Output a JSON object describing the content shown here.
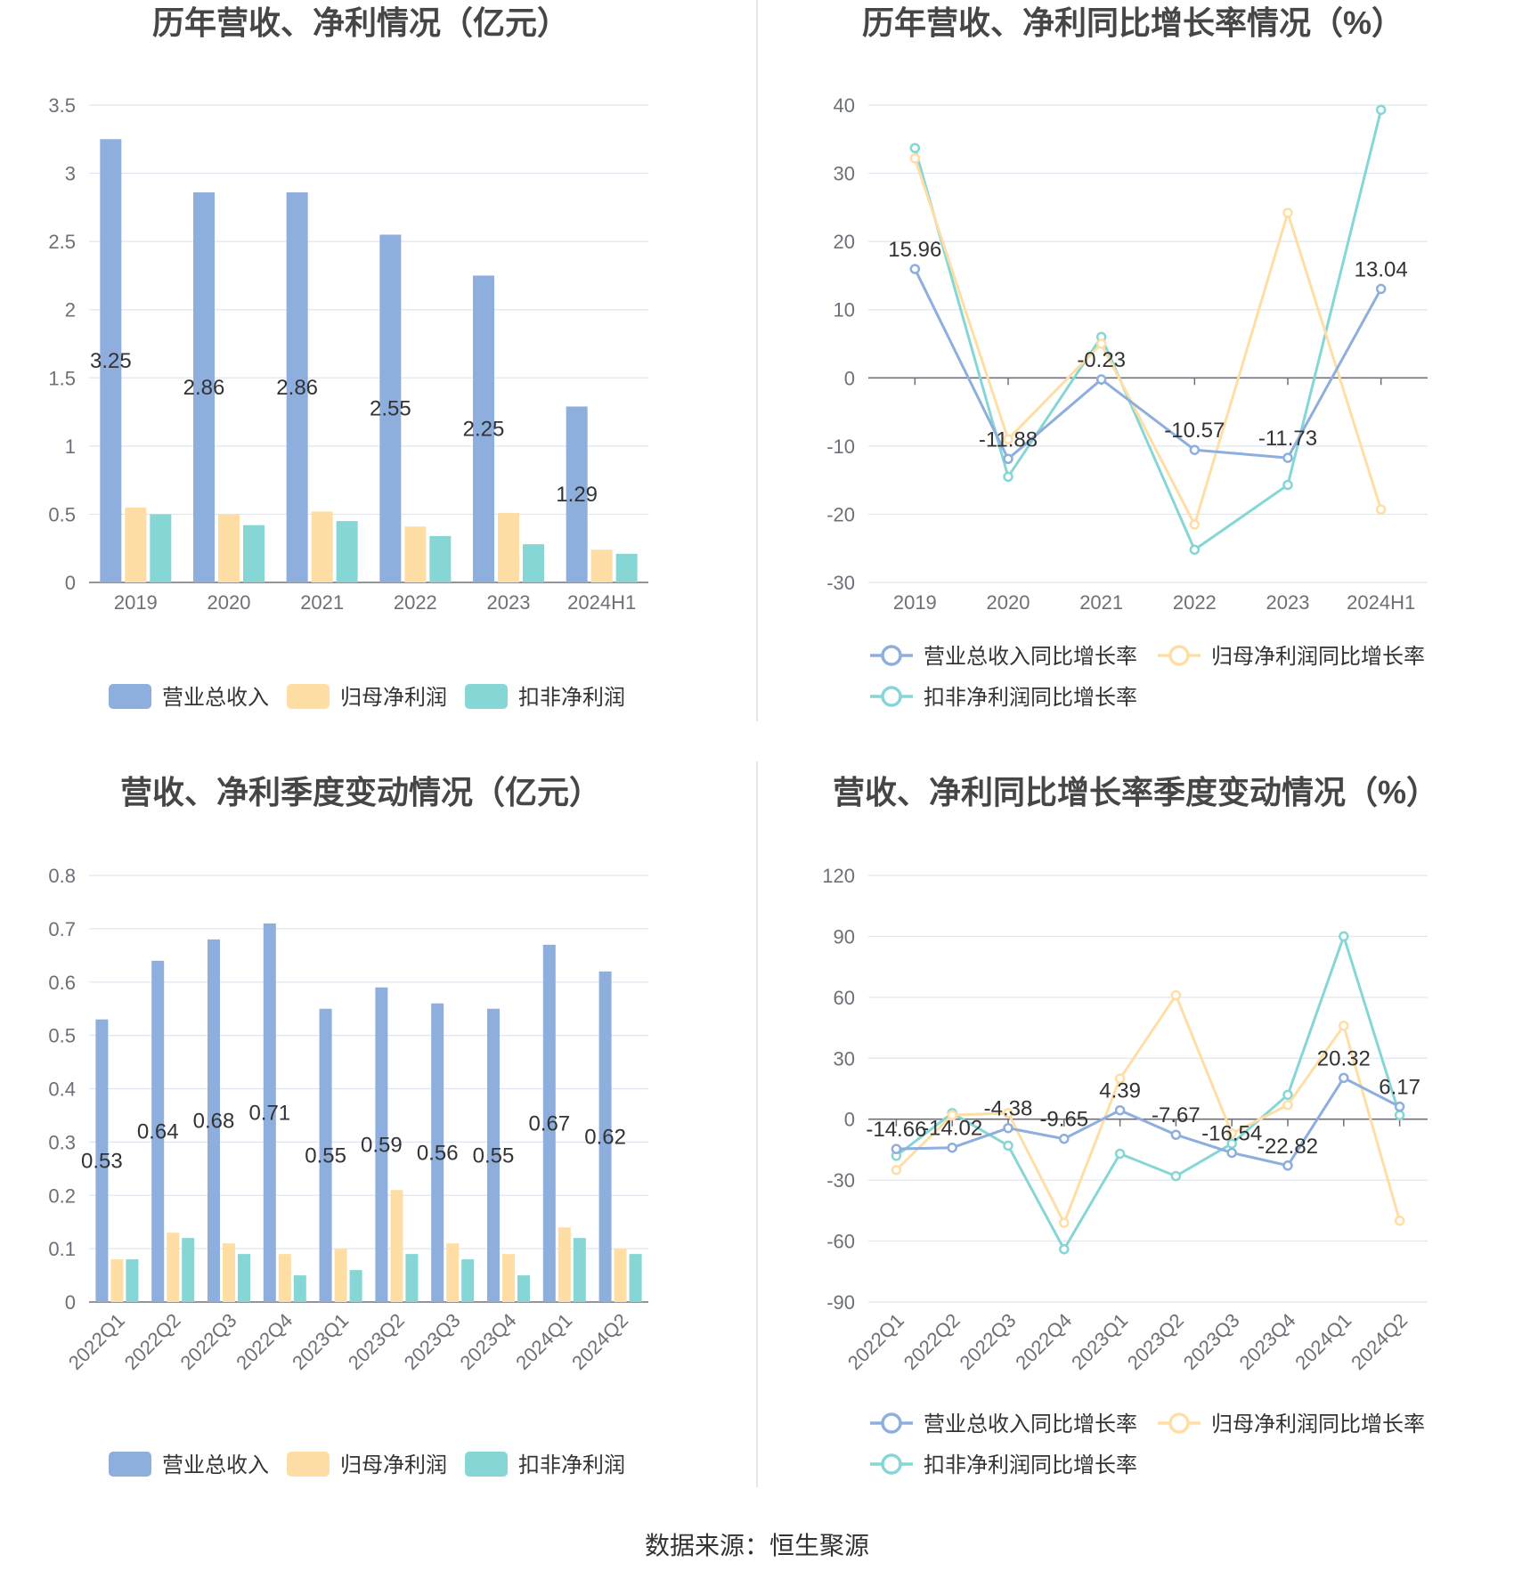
{
  "colors": {
    "revenue": "#8eaedd",
    "net_profit": "#ffdea6",
    "deducted_profit": "#86d6d6",
    "axis": "#6e7079",
    "grid": "#e0e6f1",
    "divider": "#e6e6e6",
    "title": "#464646"
  },
  "source": "数据来源：恒生聚源",
  "chart_data": [
    {
      "id": "annual-amount",
      "type": "bar",
      "title": "历年营收、净利情况（亿元）",
      "categories": [
        "2019",
        "2020",
        "2021",
        "2022",
        "2023",
        "2024H1"
      ],
      "ylim": [
        0,
        3.5
      ],
      "yticks": [
        "0",
        "0.5",
        "1",
        "1.5",
        "2",
        "2.5",
        "3",
        "3.5"
      ],
      "label_series": 0,
      "series": [
        {
          "name": "营业总收入",
          "values": [
            3.25,
            2.86,
            2.86,
            2.55,
            2.25,
            1.29
          ],
          "labels": [
            "3.25",
            "2.86",
            "2.86",
            "2.55",
            "2.25",
            "1.29"
          ]
        },
        {
          "name": "归母净利润",
          "values": [
            0.55,
            0.5,
            0.52,
            0.41,
            0.51,
            0.24
          ]
        },
        {
          "name": "扣非净利润",
          "values": [
            0.5,
            0.42,
            0.45,
            0.34,
            0.28,
            0.21
          ]
        }
      ]
    },
    {
      "id": "annual-growth",
      "type": "line",
      "title": "历年营收、净利同比增长率情况（%）",
      "categories": [
        "2019",
        "2020",
        "2021",
        "2022",
        "2023",
        "2024H1"
      ],
      "ylim": [
        -30,
        40
      ],
      "yticks": [
        "-30",
        "-20",
        "-10",
        "0",
        "10",
        "20",
        "30",
        "40"
      ],
      "label_series": 0,
      "series": [
        {
          "name": "营业总收入同比增长率",
          "values": [
            15.96,
            -11.88,
            -0.23,
            -10.57,
            -11.73,
            13.04
          ],
          "labels": [
            "15.96",
            "-11.88",
            "-0.23",
            "-10.57",
            "-11.73",
            "13.04"
          ]
        },
        {
          "name": "归母净利润同比增长率",
          "values": [
            32.2,
            -9.0,
            5.0,
            -21.5,
            24.2,
            -19.3
          ]
        },
        {
          "name": "扣非净利润同比增长率",
          "values": [
            33.7,
            -14.5,
            6.0,
            -25.2,
            -15.7,
            39.3
          ]
        }
      ]
    },
    {
      "id": "quarterly-amount",
      "type": "bar",
      "title": "营收、净利季度变动情况（亿元）",
      "categories": [
        "2022Q1",
        "2022Q2",
        "2022Q3",
        "2022Q4",
        "2023Q1",
        "2023Q2",
        "2023Q3",
        "2023Q4",
        "2024Q1",
        "2024Q2"
      ],
      "ylim": [
        0,
        0.8
      ],
      "yticks": [
        "0",
        "0.1",
        "0.2",
        "0.3",
        "0.4",
        "0.5",
        "0.6",
        "0.7",
        "0.8"
      ],
      "label_series": 0,
      "series": [
        {
          "name": "营业总收入",
          "values": [
            0.53,
            0.64,
            0.68,
            0.71,
            0.55,
            0.59,
            0.56,
            0.55,
            0.67,
            0.62
          ],
          "labels": [
            "0.53",
            "0.64",
            "0.68",
            "0.71",
            "0.55",
            "0.59",
            "0.56",
            "0.55",
            "0.67",
            "0.62"
          ]
        },
        {
          "name": "归母净利润",
          "values": [
            0.08,
            0.13,
            0.11,
            0.09,
            0.1,
            0.21,
            0.11,
            0.09,
            0.14,
            0.1
          ]
        },
        {
          "name": "扣非净利润",
          "values": [
            0.08,
            0.12,
            0.09,
            0.05,
            0.06,
            0.09,
            0.08,
            0.05,
            0.12,
            0.09
          ]
        }
      ]
    },
    {
      "id": "quarterly-growth",
      "type": "line",
      "title": "营收、净利同比增长率季度变动情况（%）",
      "categories": [
        "2022Q1",
        "2022Q2",
        "2022Q3",
        "2022Q4",
        "2023Q1",
        "2023Q2",
        "2023Q3",
        "2023Q4",
        "2024Q1",
        "2024Q2"
      ],
      "ylim": [
        -90,
        120
      ],
      "yticks": [
        "-90",
        "-60",
        "-30",
        "0",
        "30",
        "60",
        "90",
        "120"
      ],
      "label_series": 0,
      "series": [
        {
          "name": "营业总收入同比增长率",
          "values": [
            -14.66,
            -14.02,
            -4.38,
            -9.65,
            4.39,
            -7.67,
            -16.54,
            -22.82,
            20.32,
            6.17
          ],
          "labels": [
            "-14.66",
            "-14.02",
            "-4.38",
            "-9.65",
            "4.39",
            "-7.67",
            "-16.54",
            "-22.82",
            "20.32",
            "6.17"
          ]
        },
        {
          "name": "归母净利润同比增长率",
          "values": [
            -25,
            2,
            3,
            -51,
            20,
            61,
            -7,
            7,
            46,
            -50
          ]
        },
        {
          "name": "扣非净利润同比增长率",
          "values": [
            -18,
            3,
            -13,
            -64,
            -17,
            -28,
            -12,
            12,
            90,
            2
          ]
        }
      ]
    }
  ]
}
